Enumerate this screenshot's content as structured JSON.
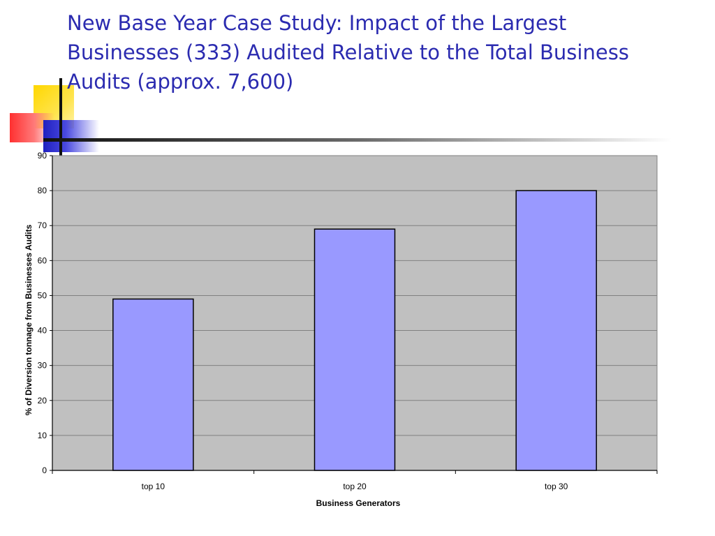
{
  "slide": {
    "title": "New Base Year Case Study: Impact of the Largest Businesses (333) Audited Relative to the Total Business Audits (approx. 7,600)"
  },
  "colors": {
    "title": "#2b2bb0",
    "plot_background": "#c0c0c0",
    "bar_fill": "#9999ff",
    "bar_stroke": "#000000",
    "gridline": "#808080"
  },
  "chart_data": {
    "type": "bar",
    "categories": [
      "top 10",
      "top 20",
      "top 30"
    ],
    "values": [
      49,
      69,
      80
    ],
    "xlabel": "Business Generators",
    "ylabel": "% of Diversion tonnage from Businesses Audits",
    "ylim": [
      0,
      90
    ],
    "yticks": [
      0,
      10,
      20,
      30,
      40,
      50,
      60,
      70,
      80,
      90
    ],
    "grid": true,
    "legend": "none"
  }
}
